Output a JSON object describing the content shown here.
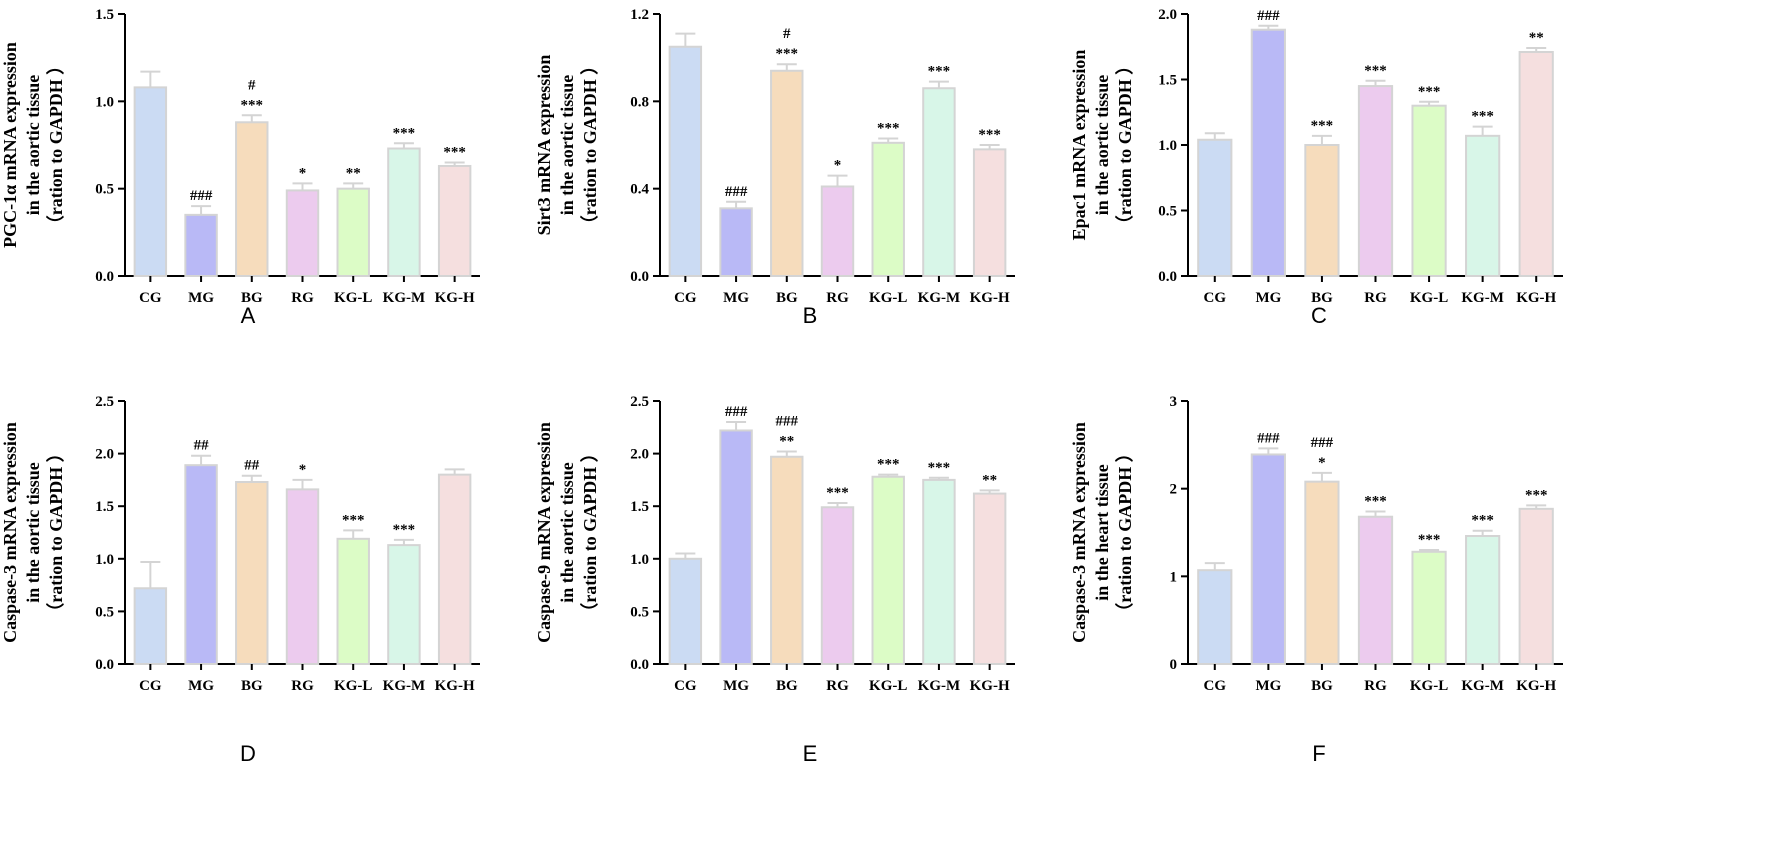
{
  "panels": [
    {
      "letter": "A"
    },
    {
      "letter": "B"
    },
    {
      "letter": "C"
    },
    {
      "letter": "D"
    },
    {
      "letter": "E"
    },
    {
      "letter": "F"
    }
  ],
  "chart_data": [
    {
      "type": "bar",
      "panel": "A",
      "categories": [
        "CG",
        "MG",
        "BG",
        "RG",
        "KG-L",
        "KG-M",
        "KG-H"
      ],
      "values": [
        1.08,
        0.35,
        0.88,
        0.49,
        0.5,
        0.73,
        0.63
      ],
      "errors": [
        0.09,
        0.05,
        0.04,
        0.04,
        0.03,
        0.03,
        0.02
      ],
      "annotations": [
        [],
        [
          "###"
        ],
        [
          "#",
          "***"
        ],
        [
          "*"
        ],
        [
          "**"
        ],
        [
          "***"
        ],
        [
          "***"
        ]
      ],
      "ylabel": [
        "PGC-1α mRNA expression",
        "in the aortic tissue",
        "（ration to GAPDH ）"
      ],
      "ylim": [
        0,
        1.5
      ],
      "yticks": [
        "0.0",
        "0.5",
        "1.0",
        "1.5"
      ]
    },
    {
      "type": "bar",
      "panel": "B",
      "categories": [
        "CG",
        "MG",
        "BG",
        "RG",
        "KG-L",
        "KG-M",
        "KG-H"
      ],
      "values": [
        1.05,
        0.31,
        0.94,
        0.41,
        0.61,
        0.86,
        0.58
      ],
      "errors": [
        0.06,
        0.03,
        0.03,
        0.05,
        0.02,
        0.03,
        0.02
      ],
      "annotations": [
        [],
        [
          "###"
        ],
        [
          "#",
          "***"
        ],
        [
          "*"
        ],
        [
          "***"
        ],
        [
          "***"
        ],
        [
          "***"
        ]
      ],
      "ylabel": [
        "Sirt3 mRNA expression",
        "in the aortic tissue",
        "（ration to GAPDH ）"
      ],
      "ylim": [
        0,
        1.2
      ],
      "yticks": [
        "0.0",
        "0.4",
        "0.8",
        "1.2"
      ]
    },
    {
      "type": "bar",
      "panel": "C",
      "categories": [
        "CG",
        "MG",
        "BG",
        "RG",
        "KG-L",
        "KG-M",
        "KG-H"
      ],
      "values": [
        1.04,
        1.88,
        1.0,
        1.45,
        1.3,
        1.07,
        1.71
      ],
      "errors": [
        0.05,
        0.03,
        0.07,
        0.04,
        0.03,
        0.07,
        0.03
      ],
      "annotations": [
        [],
        [
          "###"
        ],
        [
          "***"
        ],
        [
          "***"
        ],
        [
          "***"
        ],
        [
          "***"
        ],
        [
          "**"
        ]
      ],
      "ylabel": [
        "Epac1 mRNA expression",
        "in the aortic tissue",
        "（ration to GAPDH ）"
      ],
      "ylim": [
        0,
        2.0
      ],
      "yticks": [
        "0.0",
        "0.5",
        "1.0",
        "1.5",
        "2.0"
      ]
    },
    {
      "type": "bar",
      "panel": "D",
      "categories": [
        "CG",
        "MG",
        "BG",
        "RG",
        "KG-L",
        "KG-M",
        "KG-H"
      ],
      "values": [
        0.72,
        1.89,
        1.73,
        1.66,
        1.19,
        1.13,
        1.8
      ],
      "errors": [
        0.25,
        0.09,
        0.06,
        0.09,
        0.08,
        0.05,
        0.05
      ],
      "annotations": [
        [],
        [
          "##"
        ],
        [
          "##"
        ],
        [
          "*"
        ],
        [
          "***"
        ],
        [
          "***"
        ],
        []
      ],
      "ylabel": [
        "Caspase-3 mRNA expression",
        "in the aortic tissue",
        "（ration to GAPDH ）"
      ],
      "ylim": [
        0,
        2.5
      ],
      "yticks": [
        "0.0",
        "0.5",
        "1.0",
        "1.5",
        "2.0",
        "2.5"
      ]
    },
    {
      "type": "bar",
      "panel": "E",
      "categories": [
        "CG",
        "MG",
        "BG",
        "RG",
        "KG-L",
        "KG-M",
        "KG-H"
      ],
      "values": [
        1.0,
        2.22,
        1.97,
        1.49,
        1.78,
        1.75,
        1.62
      ],
      "errors": [
        0.05,
        0.08,
        0.05,
        0.04,
        0.02,
        0.02,
        0.03
      ],
      "annotations": [
        [],
        [
          "###"
        ],
        [
          "###",
          "**"
        ],
        [
          "***"
        ],
        [
          "***"
        ],
        [
          "***"
        ],
        [
          "**"
        ]
      ],
      "ylabel": [
        "Caspase-9 mRNA expression",
        "in the aortic tissue",
        "（ration to GAPDH ）"
      ],
      "ylim": [
        0,
        2.5
      ],
      "yticks": [
        "0.0",
        "0.5",
        "1.0",
        "1.5",
        "2.0",
        "2.5"
      ]
    },
    {
      "type": "bar",
      "panel": "F",
      "categories": [
        "CG",
        "MG",
        "BG",
        "RG",
        "KG-L",
        "KG-M",
        "KG-H"
      ],
      "values": [
        1.07,
        2.39,
        2.08,
        1.68,
        1.28,
        1.46,
        1.77
      ],
      "errors": [
        0.08,
        0.07,
        0.1,
        0.06,
        0.02,
        0.06,
        0.04
      ],
      "annotations": [
        [],
        [
          "###"
        ],
        [
          "###",
          "*"
        ],
        [
          "***"
        ],
        [
          "***"
        ],
        [
          "***"
        ],
        [
          "***"
        ]
      ],
      "ylabel": [
        "Caspase-3 mRNA expression",
        "in the heart tissue",
        "（ration to GAPDH ）"
      ],
      "ylim": [
        0,
        3
      ],
      "yticks": [
        "0",
        "1",
        "2",
        "3"
      ]
    }
  ],
  "colors": {
    "bars": [
      "#cbdbf3",
      "#b9b9f6",
      "#f6dcbc",
      "#eccbee",
      "#dcfcc6",
      "#d8f6e8",
      "#f5dfdf"
    ],
    "bar_stroke": "#d4d4d4",
    "axis": "#000000"
  }
}
